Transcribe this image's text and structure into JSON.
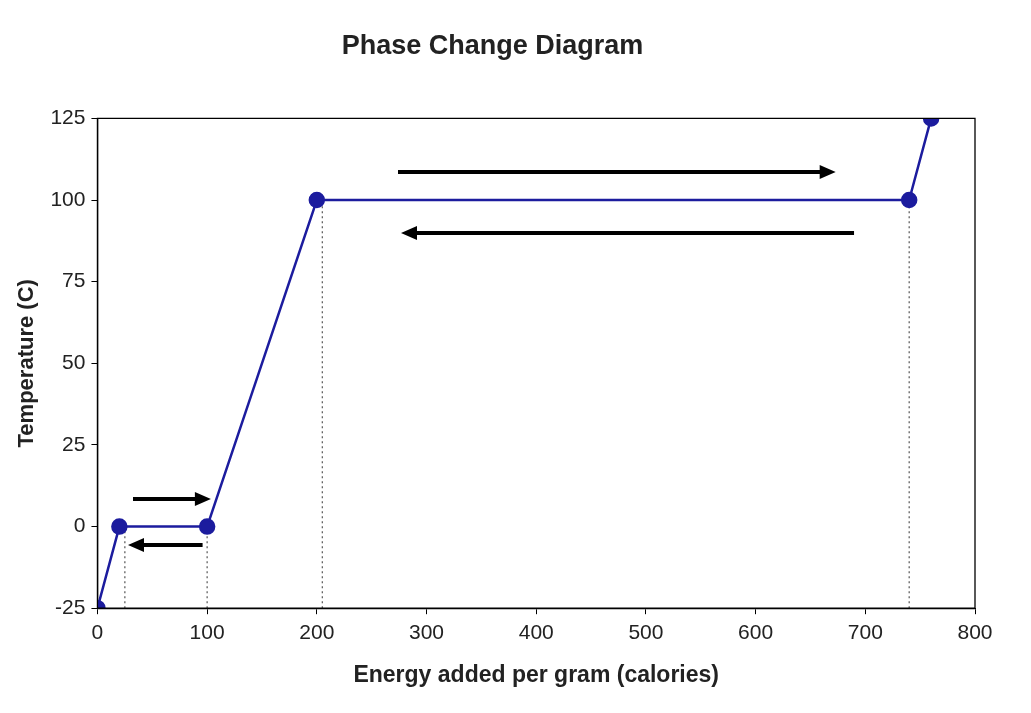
{
  "chart_data": {
    "type": "line",
    "title": "Phase Change Diagram",
    "xlabel": "Energy added per gram (calories)",
    "ylabel": "Temperature (C)",
    "x": [
      0,
      20,
      100,
      200,
      740,
      760
    ],
    "series": [
      {
        "color": "#1c1c9e",
        "values": [
          -25,
          0,
          0,
          100,
          100,
          125
        ]
      }
    ],
    "xlim": [
      0,
      800
    ],
    "xticks": [
      0,
      100,
      200,
      300,
      400,
      500,
      600,
      700,
      800
    ],
    "ylim": [
      -25,
      125
    ],
    "yticks": [
      -25,
      0,
      25,
      50,
      75,
      100,
      125
    ],
    "ref_lines": [
      {
        "axis": "x",
        "value": 25,
        "line_style": "dotted",
        "color": "#555555"
      },
      {
        "axis": "x",
        "value": 100,
        "line_style": "dotted",
        "color": "#555555"
      },
      {
        "axis": "x",
        "value": 205,
        "line_style": "dotted",
        "color": "#555555"
      },
      {
        "axis": "x",
        "value": 740,
        "line_style": "dotted",
        "color": "#555555"
      }
    ],
    "grid": false,
    "legend": false,
    "marker": "circle",
    "line_style": "solid"
  }
}
